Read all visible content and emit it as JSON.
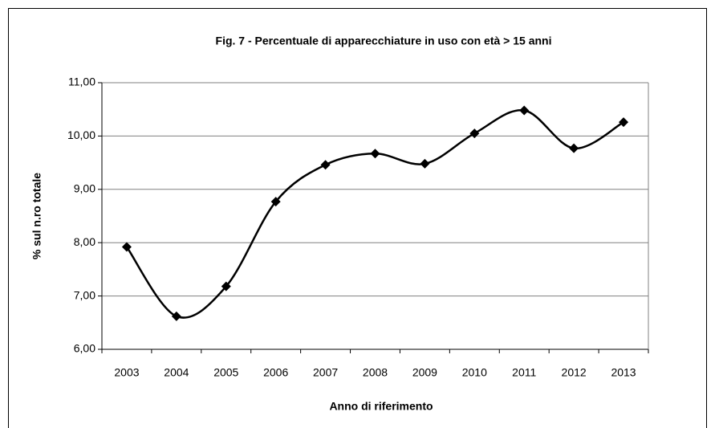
{
  "chart_data": {
    "type": "line",
    "title": "Fig. 7 - Percentuale di apparecchiature in uso con età > 15 anni",
    "x_label": "Anno di riferimento",
    "y_label": "% sul n.ro totale",
    "categories": [
      "2003",
      "2004",
      "2005",
      "2006",
      "2007",
      "2008",
      "2009",
      "2010",
      "2011",
      "2012",
      "2013"
    ],
    "values": [
      7.92,
      6.62,
      7.18,
      8.77,
      9.46,
      9.67,
      9.48,
      10.05,
      10.48,
      9.77,
      10.26
    ],
    "color": "#000000",
    "ylim": [
      6,
      11
    ],
    "yticks": [
      {
        "value": 6,
        "label": "6,00"
      },
      {
        "value": 7,
        "label": "7,00"
      },
      {
        "value": 8,
        "label": "8,00"
      },
      {
        "value": 9,
        "label": "9,00"
      },
      {
        "value": 10,
        "label": "10,00"
      },
      {
        "value": 11,
        "label": "11,00"
      }
    ],
    "grid": true
  }
}
